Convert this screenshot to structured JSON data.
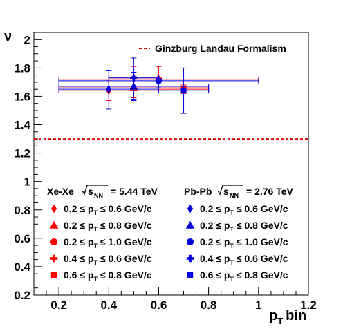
{
  "chart_data": {
    "type": "scatter",
    "xlabel": "p_T bin",
    "ylabel": "ν",
    "xlim": [
      0.1,
      1.2
    ],
    "ylim": [
      0.2,
      2.05
    ],
    "x_ticks": [
      "0.2",
      "0.4",
      "0.6",
      "0.8",
      "1",
      "1.2"
    ],
    "y_ticks": [
      "0.2",
      "0.4",
      "0.6",
      "0.8",
      "1",
      "1.2",
      "1.4",
      "1.6",
      "1.8",
      "2"
    ],
    "reference_line": {
      "label": "Ginzburg Landau Formalism",
      "y": 1.3,
      "color": "#dd0000",
      "style": "dashed"
    },
    "legend_headers": {
      "xexe": {
        "prefix": "Xe-Xe",
        "sqrt": "s",
        "sub": "NN",
        "value": "= 5.44 TeV"
      },
      "pbpb": {
        "prefix": "Pb-Pb",
        "sqrt": "s",
        "sub": "NN",
        "value": "= 2.76 TeV"
      }
    },
    "series": [
      {
        "system": "Xe-Xe",
        "color": "#ff0000",
        "marker": "diamond",
        "lo": "0.2",
        "hi": "0.6 GeV/c",
        "x": 0.4,
        "y": 1.64,
        "xlo": 0.2,
        "xhi": 0.6,
        "ylo": 1.57,
        "yhi": 1.71
      },
      {
        "system": "Xe-Xe",
        "color": "#ff0000",
        "marker": "triangle",
        "lo": "0.2",
        "hi": "0.8 GeV/c",
        "x": 0.5,
        "y": 1.66,
        "xlo": 0.2,
        "xhi": 0.8,
        "ylo": 1.59,
        "yhi": 1.74
      },
      {
        "system": "Xe-Xe",
        "color": "#ff0000",
        "marker": "circle",
        "lo": "0.2",
        "hi": "1.0 GeV/c",
        "x": 0.6,
        "y": 1.72,
        "xlo": 0.2,
        "xhi": 1.0,
        "ylo": 1.64,
        "yhi": 1.81
      },
      {
        "system": "Xe-Xe",
        "color": "#ff0000",
        "marker": "cross",
        "lo": "0.4",
        "hi": "0.6 GeV/c",
        "x": 0.5,
        "y": 1.73,
        "xlo": 0.4,
        "xhi": 0.6,
        "ylo": 1.65,
        "yhi": 1.81
      },
      {
        "system": "Xe-Xe",
        "color": "#ff0000",
        "marker": "square",
        "lo": "0.6",
        "hi": "0.8 GeV/c",
        "x": 0.7,
        "y": 1.65,
        "xlo": 0.6,
        "xhi": 0.8,
        "ylo": 1.62,
        "yhi": 1.68
      },
      {
        "system": "Pb-Pb",
        "color": "#0000dd",
        "marker": "diamond",
        "lo": "0.2",
        "hi": "0.6 GeV/c",
        "x": 0.4,
        "y": 1.65,
        "xlo": 0.2,
        "xhi": 0.6,
        "ylo": 1.51,
        "yhi": 1.78
      },
      {
        "system": "Pb-Pb",
        "color": "#0000dd",
        "marker": "triangle",
        "lo": "0.2",
        "hi": "0.8 GeV/c",
        "x": 0.5,
        "y": 1.67,
        "xlo": 0.2,
        "xhi": 0.8,
        "ylo": 1.57,
        "yhi": 1.77
      },
      {
        "system": "Pb-Pb",
        "color": "#0000dd",
        "marker": "circle",
        "lo": "0.2",
        "hi": "1.0 GeV/c",
        "x": 0.6,
        "y": 1.71,
        "xlo": 0.2,
        "xhi": 1.0,
        "ylo": 1.66,
        "yhi": 1.75
      },
      {
        "system": "Pb-Pb",
        "color": "#0000dd",
        "marker": "cross",
        "lo": "0.4",
        "hi": "0.6 GeV/c",
        "x": 0.5,
        "y": 1.73,
        "xlo": 0.4,
        "xhi": 0.6,
        "ylo": 1.58,
        "yhi": 1.87
      },
      {
        "system": "Pb-Pb",
        "color": "#0000dd",
        "marker": "square",
        "lo": "0.6",
        "hi": "0.8 GeV/c",
        "x": 0.7,
        "y": 1.64,
        "xlo": 0.6,
        "xhi": 0.8,
        "ylo": 1.48,
        "yhi": 1.8
      }
    ]
  }
}
